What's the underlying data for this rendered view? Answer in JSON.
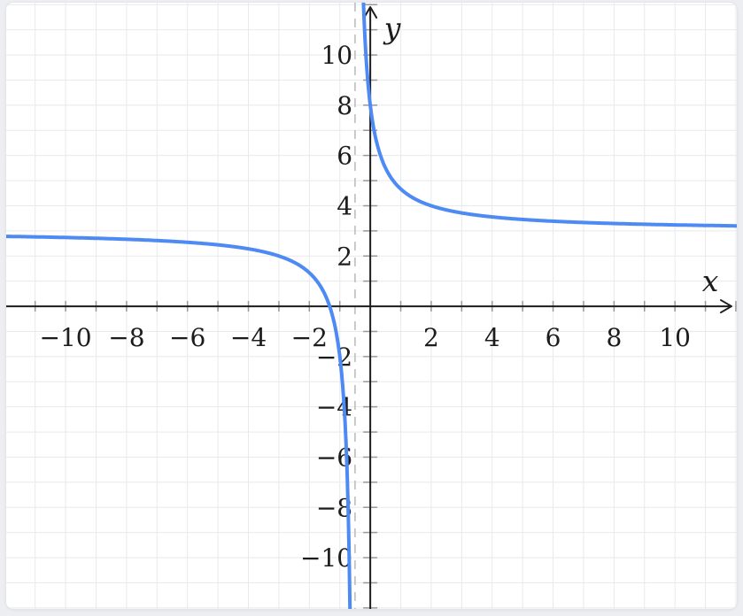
{
  "page": {
    "background": "#edeef1",
    "card_background": "#ffffff"
  },
  "chart_data": {
    "type": "line",
    "title": "",
    "xlabel": "x",
    "ylabel": "y",
    "xlim": [
      -11.95,
      12.03
    ],
    "ylim": [
      -12.04,
      12.08
    ],
    "grid": true,
    "grid_step": 1,
    "minor_tick_step": 1,
    "x_tick_labels": [
      -10,
      -8,
      -6,
      -4,
      -2,
      2,
      4,
      6,
      8,
      10
    ],
    "y_tick_labels": [
      -10,
      -8,
      -6,
      -4,
      -2,
      2,
      4,
      6,
      8,
      10
    ],
    "series": [
      {
        "name": "rational-function-curve",
        "formula": "y = 3 + 2.5 / (x + 0.5)",
        "params": {
          "k": 3,
          "a": 2.5,
          "h": -0.5
        },
        "key_points": {
          "y_intercept": [
            0,
            8
          ],
          "x_intercept": [
            -1.33,
            0
          ]
        },
        "color": "#4e8af4",
        "stroke_width": 4
      }
    ],
    "asymptotes": {
      "vertical": {
        "x": -0.5,
        "style": "dashed",
        "color": "#bdbdbd",
        "drawn": true
      },
      "horizontal": {
        "y": 3,
        "drawn": false
      }
    },
    "colors": {
      "axis": "#1c1c1e",
      "grid": "#e8e9eb",
      "tick": "#98989c",
      "label": "#1c1c1c",
      "curve": "#4e8af4",
      "asymptote": "#bdbdbd"
    },
    "legend": {
      "shown": false
    }
  }
}
